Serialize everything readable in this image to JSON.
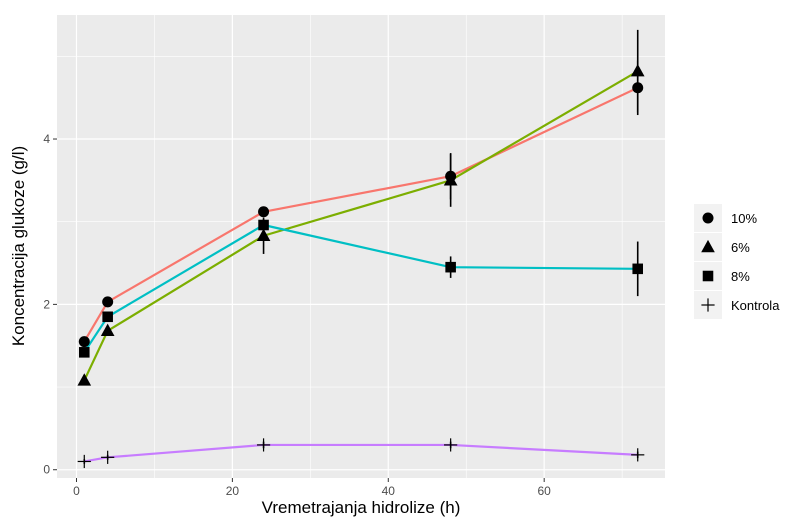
{
  "chart_data": {
    "type": "line",
    "xlabel": "Vremetrajanja hidrolize (h)",
    "ylabel": "Koncentracija glukoze (g/l)",
    "xlim": [
      -2.5,
      75.5
    ],
    "ylim": [
      -0.1,
      5.5
    ],
    "x_ticks": [
      0,
      20,
      40,
      60
    ],
    "y_ticks": [
      0,
      2,
      4
    ],
    "grid": true,
    "background": "#ebebeb",
    "legend_position": "right",
    "series": [
      {
        "name": "10%",
        "shape": "circle",
        "color": "#f8766d",
        "x": [
          1,
          4,
          24,
          48,
          72
        ],
        "y": [
          1.55,
          2.03,
          3.12,
          3.55,
          4.62
        ],
        "err": [
          0,
          0,
          0.04,
          0.28,
          0.33
        ]
      },
      {
        "name": "6%",
        "shape": "triangle",
        "color": "#7cae00",
        "x": [
          1,
          4,
          24,
          48,
          72
        ],
        "y": [
          1.08,
          1.68,
          2.83,
          3.5,
          4.82
        ],
        "err": [
          0,
          0,
          0.22,
          0.32,
          0.5
        ]
      },
      {
        "name": "8%",
        "shape": "square",
        "color": "#00bfc4",
        "x": [
          1,
          4,
          24,
          48,
          72
        ],
        "y": [
          1.42,
          1.85,
          2.96,
          2.45,
          2.43
        ],
        "err": [
          0,
          0,
          0.07,
          0.13,
          0.33
        ]
      },
      {
        "name": "Kontrola",
        "shape": "cross",
        "color": "#c77cff",
        "x": [
          1,
          4,
          24,
          48,
          72
        ],
        "y": [
          0.1,
          0.15,
          0.3,
          0.3,
          0.18
        ],
        "err": [
          0.03,
          0.03,
          0.04,
          0.04,
          0.04
        ]
      }
    ]
  }
}
